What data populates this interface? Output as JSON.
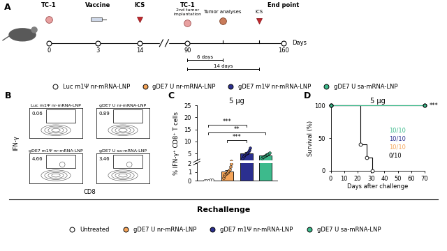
{
  "panel_labels": [
    "A",
    "B",
    "C",
    "D"
  ],
  "timeline": {
    "days": [
      0,
      3,
      14,
      90,
      160
    ],
    "labels": [
      "TC-1",
      "Vaccine",
      "ICS",
      "TC-1",
      "End point"
    ],
    "sublabels": [
      null,
      null,
      null,
      "2nd tumor\nimplantation",
      null
    ],
    "followups": [
      {
        "label": "Tumor analyses",
        "interval": "6 days"
      },
      {
        "label": "ICS",
        "interval": "14 days"
      }
    ],
    "unit": "Days"
  },
  "flow": {
    "ylabel": "IFN-γ",
    "xlabel": "CD8",
    "tick_labels": false,
    "panels": [
      {
        "title": "Luc m1Ψ nr-mRNA-LNP",
        "gate_percent": 0.06
      },
      {
        "title": "gDE7 U nr-mRNA-LNP",
        "gate_percent": 0.89
      },
      {
        "title": "gDE7 m1Ψ nr-mRNA-LNP",
        "gate_percent": 4.66
      },
      {
        "title": "gDE7 U sa-mRNA-LNP",
        "gate_percent": 3.46
      }
    ]
  },
  "chart_data": [
    {
      "type": "bar",
      "title": "5 μg",
      "ylabel": "% IFN-γ⁺ CD8⁺ T cells",
      "categories": [
        "Luc m1Ψ nr-mRNA-LNP",
        "gDE7 U nr-mRNA-LNP",
        "gDE7 m1Ψ nr-mRNA-LNP",
        "gDE7 U sa-mRNA-LNP"
      ],
      "colors": [
        "#ffffff",
        "#f5a55a",
        "#2b2f8f",
        "#3dba8c"
      ],
      "values": [
        0.05,
        1.03,
        5.1,
        4.2
      ],
      "errors": [
        0.01,
        0.17,
        0.45,
        0.22
      ],
      "points": [
        [
          0.03,
          0.04,
          0.05,
          0.06,
          0.07
        ],
        [
          0.35,
          0.55,
          0.7,
          0.8,
          0.9,
          1.0,
          1.15,
          1.3,
          1.6,
          1.9
        ],
        [
          3.1,
          3.9,
          4.3,
          4.7,
          5.0,
          5.4,
          5.9,
          6.5,
          7.2
        ],
        [
          3.0,
          3.5,
          3.7,
          3.9,
          4.1,
          4.3,
          4.5,
          4.7,
          5.0,
          5.3
        ]
      ],
      "ylim": [
        [
          0,
          2
        ],
        [
          2,
          25
        ]
      ],
      "yticks": [
        [
          0,
          1,
          2
        ],
        [
          5,
          10,
          15,
          20,
          25
        ]
      ],
      "tick_labels": "y",
      "annotations": [
        {
          "text": "***",
          "from": 0,
          "to": 2
        },
        {
          "text": "**",
          "from": 0,
          "to": 3
        },
        {
          "text": "***",
          "from": 1,
          "to": 2
        }
      ]
    },
    {
      "type": "line",
      "title": "5 μg",
      "xlabel": "Days after challenge",
      "ylabel": "Survival (%)",
      "xlim": [
        0,
        70
      ],
      "ylim": [
        0,
        100
      ],
      "xticks": [
        0,
        10,
        20,
        30,
        40,
        50,
        60,
        70
      ],
      "yticks": [
        0,
        50,
        100
      ],
      "series": [
        {
          "name": "Untreated",
          "color": "#ffffff",
          "x": [
            0,
            22,
            27,
            31
          ],
          "values": [
            100,
            40,
            20,
            0
          ],
          "annotation": "0/10"
        },
        {
          "name": "gDE7 U nr-mRNA-LNP",
          "color": "#f5a55a",
          "x": [
            0,
            70
          ],
          "values": [
            100,
            100
          ],
          "annotation": "10/10"
        },
        {
          "name": "gDE7 m1Ψ nr-mRNA-LNP",
          "color": "#2b2f8f",
          "x": [
            0,
            70
          ],
          "values": [
            100,
            100
          ],
          "annotation": "10/10"
        },
        {
          "name": "gDE7 U sa-mRNA-LNP",
          "color": "#3dba8c",
          "x": [
            0,
            70
          ],
          "values": [
            100,
            100
          ],
          "annotation": "10/10"
        }
      ],
      "annotations": [
        "***"
      ]
    }
  ],
  "rechallenge_legend": {
    "title": "Rechallenge"
  }
}
